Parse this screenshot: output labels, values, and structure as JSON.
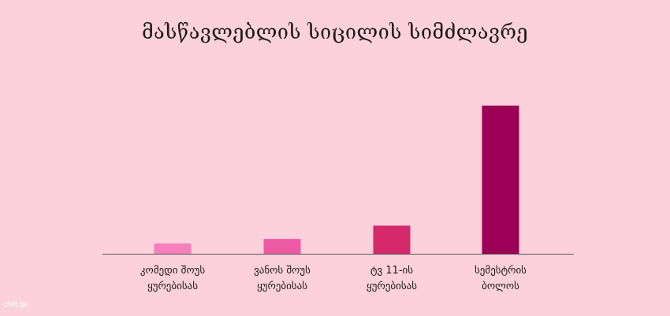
{
  "chart_data": {
    "type": "bar",
    "title": "მასწავლებლის სიცილის სიმძლავრე",
    "categories": [
      "კომედი შოუს\nყურებისას",
      "ვანოს შოუს\nყურებისას",
      "ტვ 11-ის\nყურებისას",
      "სემესტრის\nბოლოს"
    ],
    "values": [
      7,
      10,
      19,
      100
    ],
    "colors": [
      "#f77fbd",
      "#ec5aa3",
      "#d42a6c",
      "#9c0056"
    ],
    "ylim": [
      0,
      100
    ],
    "grid": false,
    "legend": "none",
    "xlabel": "",
    "ylabel": ""
  },
  "watermark": "chiti.ge"
}
